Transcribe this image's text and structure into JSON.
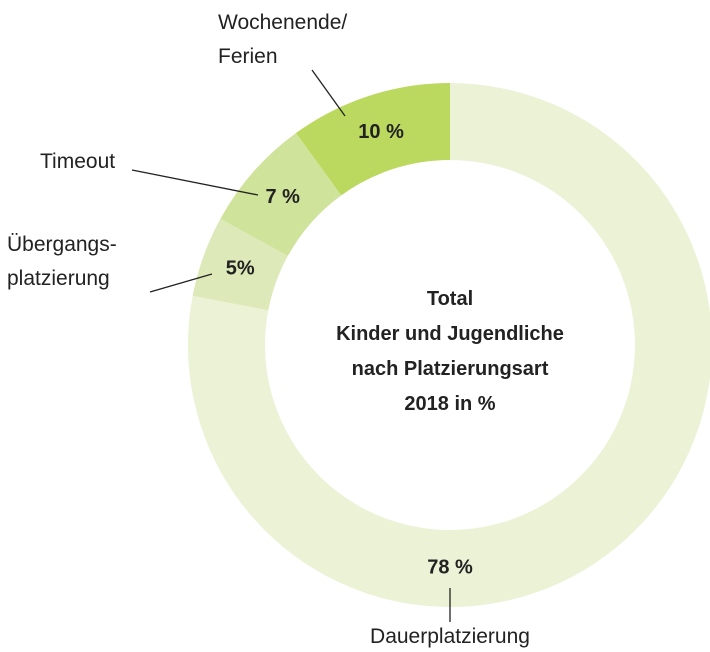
{
  "chart_data": {
    "type": "donut",
    "title": "Total\nKinder und Jugendliche\nnach Platzierungsart\n2018 in %",
    "categories": [
      "Dauerplatzierung",
      "Übergangs-\nplatzierung",
      "Timeout",
      "Wochenende/\nFerien"
    ],
    "values": [
      78,
      5,
      7,
      10
    ],
    "value_labels": [
      "78 %",
      "5%",
      "7 %",
      "10 %"
    ],
    "colors": [
      "#ebf2d5",
      "#dde9b8",
      "#cfe39a",
      "#bcd95f"
    ]
  }
}
